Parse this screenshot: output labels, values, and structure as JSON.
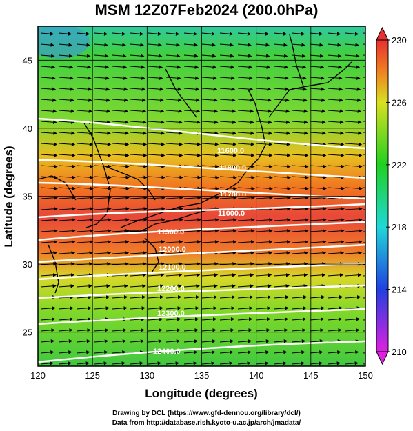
{
  "title": "MSM 12Z07Feb2024 (200.0hPa)",
  "x_axis": {
    "label": "Longitude (degrees)",
    "range": [
      120,
      150
    ],
    "ticks": [
      "120",
      "125",
      "130",
      "135",
      "140",
      "145",
      "150"
    ]
  },
  "y_axis": {
    "label": "Latitude  (degrees)",
    "range": [
      22.5,
      47.5
    ],
    "ticks": [
      "25",
      "30",
      "35",
      "40",
      "45"
    ]
  },
  "colorbar": {
    "range": [
      210,
      230
    ],
    "ticks": [
      "210",
      "214",
      "218",
      "222",
      "226",
      "230"
    ],
    "colors": [
      "#e020e0",
      "#2040e0",
      "#20d8d8",
      "#20d020",
      "#d8e020",
      "#f08020",
      "#e83030"
    ]
  },
  "contour_labels": [
    "11600.0",
    "11800.0",
    "11700.0",
    "11000.0",
    "11900.0",
    "12000.0",
    "12100.0",
    "12200.0",
    "12300.0",
    "12400.0"
  ],
  "credits": {
    "line1": "Drawing by DCL (https://www.gfd-dennou.org/library/dcl/)",
    "line2": "Data from http://database.rish.kyoto-u.ac.jp/arch/jmadata/"
  }
}
